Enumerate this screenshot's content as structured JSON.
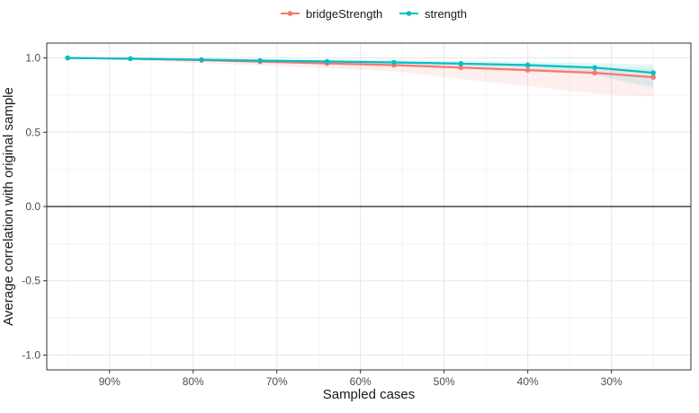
{
  "chart_data": {
    "type": "line",
    "xlabel": "Sampled cases",
    "ylabel": "Average correlation with original sample",
    "x_axis": {
      "reversed": true,
      "domain": [
        0.205,
        0.975
      ],
      "ticks": [
        0.9,
        0.8,
        0.7,
        0.6,
        0.5,
        0.4,
        0.3
      ],
      "tick_labels": [
        "90%",
        "80%",
        "70%",
        "60%",
        "50%",
        "40%",
        "30%"
      ]
    },
    "y_axis": {
      "domain": [
        -1.1,
        1.1
      ],
      "ticks": [
        1.0,
        0.5,
        0.0,
        -0.5,
        -1.0
      ],
      "tick_labels": [
        "1.0",
        "0.5",
        "0.0",
        "-0.5",
        "-1.0"
      ]
    },
    "zero_line": true,
    "grid": true,
    "legend_position": "top",
    "x": [
      0.95,
      0.875,
      0.79,
      0.72,
      0.64,
      0.56,
      0.48,
      0.4,
      0.32,
      0.25
    ],
    "series": [
      {
        "name": "bridgeStrength",
        "color": "#f8766d",
        "values": [
          1.0,
          0.995,
          0.985,
          0.975,
          0.963,
          0.952,
          0.935,
          0.918,
          0.9,
          0.87
        ],
        "band_lower": [
          1.0,
          0.985,
          0.965,
          0.95,
          0.93,
          0.91,
          0.86,
          0.81,
          0.76,
          0.74
        ],
        "band_upper": [
          1.0,
          0.997,
          0.99,
          0.985,
          0.975,
          0.97,
          0.96,
          0.95,
          0.94,
          0.93
        ]
      },
      {
        "name": "strength",
        "color": "#00bfc4",
        "values": [
          1.0,
          0.995,
          0.988,
          0.982,
          0.976,
          0.97,
          0.962,
          0.952,
          0.935,
          0.9
        ],
        "band_lower": [
          1.0,
          0.99,
          0.98,
          0.972,
          0.962,
          0.95,
          0.935,
          0.915,
          0.885,
          0.8
        ],
        "band_upper": [
          1.0,
          0.999,
          0.996,
          0.992,
          0.99,
          0.985,
          0.98,
          0.975,
          0.965,
          0.955
        ]
      }
    ]
  }
}
